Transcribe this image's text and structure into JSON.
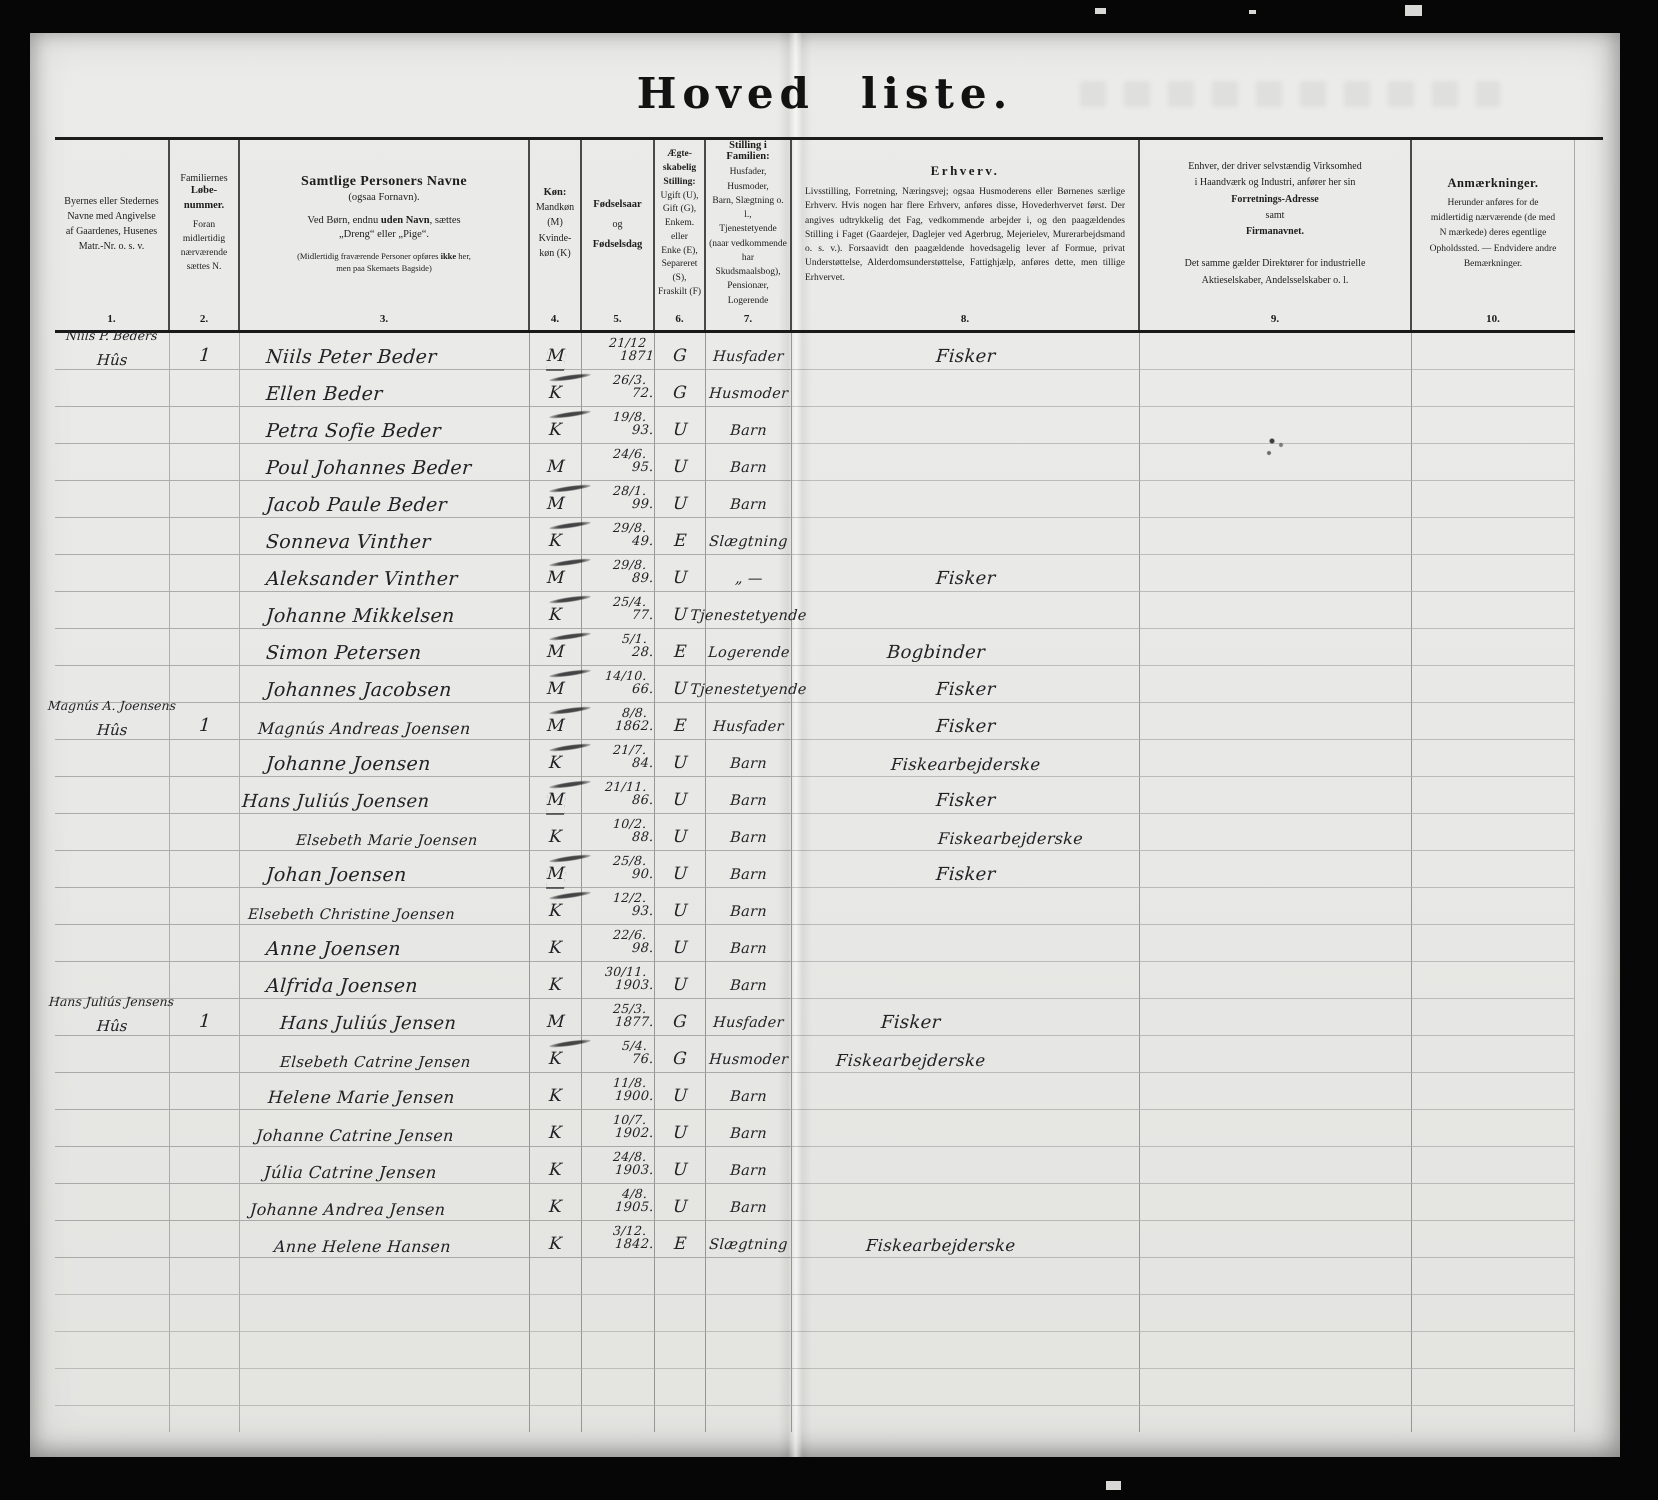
{
  "title": {
    "word1": "Hoved",
    "word2": "liste."
  },
  "header": {
    "col_numbers": [
      "1.",
      "2.",
      "3.",
      "4.",
      "5.",
      "6.",
      "7.",
      "8.",
      "9.",
      "10."
    ],
    "c1": {
      "text": "Byernes eller Stedernes\nNavne med Angivelse\naf Gaardenes, Husenes\nMatr.-Nr. o. s. v."
    },
    "c2": {
      "top": "Familiernes",
      "bold": "Løbe-\nnummer.",
      "rest": "Foran\nmidlertidig\nnærværende\nsættes N."
    },
    "c3": {
      "heading": "Samtlige Personers Navne",
      "sub": "(ogsaa Fornavn).",
      "line2_pre": "Ved Børn, endnu ",
      "line2_bold": "uden Navn",
      "line2_post": ", sættes",
      "line3": "„Dreng“ eller „Pige“.",
      "note_pre": "(Midlertidig fraværende Personer opføres ",
      "note_bold": "ikke",
      "note_post": " her,\nmen paa Skemaets Bagside)"
    },
    "c4": {
      "bold": "Køn:",
      "rest": "Mandkøn\n(M)\nKvinde-\nkøn (K)"
    },
    "c5": {
      "bold1": "Fødselsaar",
      "mid": "og",
      "bold2": "Fødselsdag"
    },
    "c6": {
      "bold": "Ægte-\nskabelig\nStilling:",
      "rest": "Ugift (U),\nGift (G),\nEnkem. eller\nEnke (E),\nSepareret\n(S),\nFraskilt (F)"
    },
    "c7": {
      "bold": "Stilling i Familien:",
      "rest": "Husfader, Husmoder,\nBarn, Slægtning o. l.,\nTjenestetyende\n(naar vedkommende\nhar Skudsmaalsbog),\nPensionær, Logerende"
    },
    "c8": {
      "title": "Erhverv.",
      "body": "Livsstilling, Forretning, Næringsvej; ogsaa Husmoderens eller Børnenes særlige Erhverv. Hvis nogen har flere Erhverv, anføres disse, Hovederhvervet først. Der angives udtrykkelig det Fag, vedkommende arbejder i, og den paagældendes Stilling i Faget (Gaardejer, Daglejer ved Agerbrug, Mejerielev, Murerarbejdsmand o. s. v.). Forsaavidt den paagældende hovedsagelig lever af Formue, privat Understøttelse, Alderdomsunderstøttelse, Fattighjælp, anføres dette, men tillige Erhvervet."
    },
    "c9": {
      "pre": "Enhver, der driver selvstændig Virksomhed\ni Haandværk og Industri, anfører her sin\n",
      "bold1": "Forretnings-Adresse",
      "mid": " samt ",
      "bold2": "Firmanavnet.",
      "post": "\nDet samme gælder Direktører for industrielle\nAktieselskaber, Andelsselskaber o. l."
    },
    "c10": {
      "title": "Anmærkninger.",
      "body": "Herunder anføres for de\nmidlertidig nærværende (de med\nN mærkede) deres egentlige\nOpholdssted. — Endvidere andre\nBemærkninger."
    }
  },
  "rows": [
    {
      "place1": "Niils P. Beders",
      "place2": "Hûs",
      "num": "1",
      "name": "Niils Peter Beder",
      "sex": "M",
      "bday": "21/12",
      "byear": "1871",
      "marital": "G",
      "family": "Husfader",
      "occ": "Fisker",
      "smudge": false
    },
    {
      "place1": "",
      "place2": "",
      "num": "",
      "name": "Ellen Beder",
      "sex": "K",
      "bday": "26/3.",
      "byear": "72.",
      "marital": "G",
      "family": "Husmoder",
      "occ": "",
      "smudge": true
    },
    {
      "place1": "",
      "place2": "",
      "num": "",
      "name": "Petra Sofie Beder",
      "sex": "K",
      "bday": "19/8.",
      "byear": "93.",
      "marital": "U",
      "family": "Barn",
      "occ": "",
      "smudge": true
    },
    {
      "place1": "",
      "place2": "",
      "num": "",
      "name": "Poul Johannes Beder",
      "sex": "M",
      "bday": "24/6.",
      "byear": "95.",
      "marital": "U",
      "family": "Barn",
      "occ": "",
      "smudge": false
    },
    {
      "place1": "",
      "place2": "",
      "num": "",
      "name": "Jacob Paule Beder",
      "sex": "M",
      "bday": "28/1.",
      "byear": "99.",
      "marital": "U",
      "family": "Barn",
      "occ": "",
      "smudge": true
    },
    {
      "place1": "",
      "place2": "",
      "num": "",
      "name": "Sonneva Vinther",
      "sex": "K",
      "bday": "29/8.",
      "byear": "49.",
      "marital": "E",
      "family": "Slægtning",
      "occ": "",
      "smudge": true
    },
    {
      "place1": "",
      "place2": "",
      "num": "",
      "name": "Aleksander Vinther",
      "sex": "M",
      "bday": "29/8.",
      "byear": "89.",
      "marital": "U",
      "family": "„ —",
      "occ": "Fisker",
      "smudge": true
    },
    {
      "place1": "",
      "place2": "",
      "num": "",
      "name": "Johanne Mikkelsen",
      "sex": "K",
      "bday": "25/4.",
      "byear": "77.",
      "marital": "U",
      "family": "Tjenestetyende",
      "occ": "",
      "smudge": true
    },
    {
      "place1": "",
      "place2": "",
      "num": "",
      "name": "Simon Petersen",
      "sex": "M",
      "bday": "5/1.",
      "byear": "28.",
      "marital": "E",
      "family": "Logerende",
      "occ": "Bogbinder",
      "smudge": true
    },
    {
      "place1": "",
      "place2": "",
      "num": "",
      "name": "Johannes Jacobsen",
      "sex": "M",
      "bday": "14/10.",
      "byear": "66.",
      "marital": "U",
      "family": "Tjenestetyende",
      "occ": "Fisker",
      "smudge": true
    },
    {
      "place1": "Magnús A. Joensens",
      "place2": "Hûs",
      "num": "1",
      "name": "Magnús Andreas Joensen",
      "sex": "M",
      "bday": "8/8.",
      "byear": "1862.",
      "marital": "E",
      "family": "Husfader",
      "occ": "Fisker",
      "smudge": true
    },
    {
      "place1": "",
      "place2": "",
      "num": "",
      "name": "Johanne Joensen",
      "sex": "K",
      "bday": "21/7.",
      "byear": "84.",
      "marital": "U",
      "family": "Barn",
      "occ": "Fiskearbejderske",
      "smudge": true
    },
    {
      "place1": "",
      "place2": "",
      "num": "",
      "name": "Hans Juliús Joensen",
      "sex": "M",
      "bday": "21/11.",
      "byear": "86.",
      "marital": "U",
      "family": "Barn",
      "occ": "Fisker",
      "smudge": true
    },
    {
      "place1": "",
      "place2": "",
      "num": "",
      "name": "Elsebeth Marie Joensen",
      "sex": "K",
      "bday": "10/2.",
      "byear": "88.",
      "marital": "U",
      "family": "Barn",
      "occ": "Fiskearbejderske",
      "smudge": false
    },
    {
      "place1": "",
      "place2": "",
      "num": "",
      "name": "Johan Joensen",
      "sex": "M",
      "bday": "25/8.",
      "byear": "90.",
      "marital": "U",
      "family": "Barn",
      "occ": "Fisker",
      "smudge": true
    },
    {
      "place1": "",
      "place2": "",
      "num": "",
      "name": "Elsebeth Christine Joensen",
      "sex": "K",
      "bday": "12/2.",
      "byear": "93.",
      "marital": "U",
      "family": "Barn",
      "occ": "",
      "smudge": true
    },
    {
      "place1": "",
      "place2": "",
      "num": "",
      "name": "Anne Joensen",
      "sex": "K",
      "bday": "22/6.",
      "byear": "98.",
      "marital": "U",
      "family": "Barn",
      "occ": "",
      "smudge": false
    },
    {
      "place1": "",
      "place2": "",
      "num": "",
      "name": "Alfrida Joensen",
      "sex": "K",
      "bday": "30/11.",
      "byear": "1903.",
      "marital": "U",
      "family": "Barn",
      "occ": "",
      "smudge": false
    },
    {
      "place1": "Hans Juliús Jensens",
      "place2": "Hûs",
      "num": "1",
      "name": "Hans Juliús Jensen",
      "sex": "M",
      "bday": "25/3.",
      "byear": "1877.",
      "marital": "G",
      "family": "Husfader",
      "occ": "Fisker",
      "smudge": false
    },
    {
      "place1": "",
      "place2": "",
      "num": "",
      "name": "Elsebeth Catrine Jensen",
      "sex": "K",
      "bday": "5/4.",
      "byear": "76.",
      "marital": "G",
      "family": "Husmoder",
      "occ": "Fiskearbejderske",
      "smudge": true
    },
    {
      "place1": "",
      "place2": "",
      "num": "",
      "name": "Helene Marie Jensen",
      "sex": "K",
      "bday": "11/8.",
      "byear": "1900.",
      "marital": "U",
      "family": "Barn",
      "occ": "",
      "smudge": false
    },
    {
      "place1": "",
      "place2": "",
      "num": "",
      "name": "Johanne Catrine Jensen",
      "sex": "K",
      "bday": "10/7.",
      "byear": "1902.",
      "marital": "U",
      "family": "Barn",
      "occ": "",
      "smudge": false
    },
    {
      "place1": "",
      "place2": "",
      "num": "",
      "name": "Júlia Catrine Jensen",
      "sex": "K",
      "bday": "24/8.",
      "byear": "1903.",
      "marital": "U",
      "family": "Barn",
      "occ": "",
      "smudge": false
    },
    {
      "place1": "",
      "place2": "",
      "num": "",
      "name": "Johanne Andrea Jensen",
      "sex": "K",
      "bday": "4/8.",
      "byear": "1905.",
      "marital": "U",
      "family": "Barn",
      "occ": "",
      "smudge": false
    },
    {
      "place1": "",
      "place2": "",
      "num": "",
      "name": "Anne Helene Hansen",
      "sex": "K",
      "bday": "3/12.",
      "byear": "1842.",
      "marital": "E",
      "family": "Slægtning",
      "occ": "Fiskearbejderske",
      "smudge": false
    }
  ]
}
